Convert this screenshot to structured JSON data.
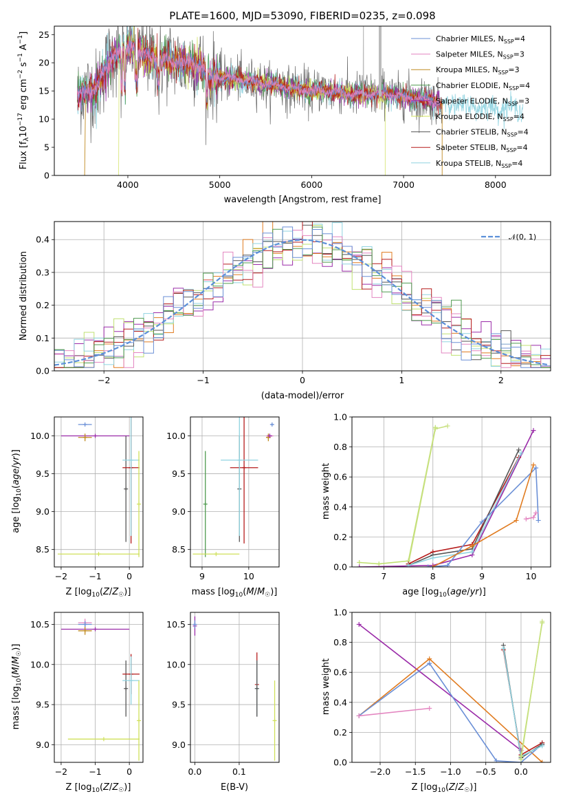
{
  "title": "PLATE=1600, MJD=53090, FIBERID=0235, z=0.098",
  "colors": {
    "Chabrier MILES": "#6a8fd6",
    "Salpeter MILES": "#e385c0",
    "Kroupa MILES": "#c08a20",
    "Chabrier ELODIE": "#4f9a4f",
    "Salpeter ELODIE": "#9a2aa8",
    "Kroupa ELODIE": "#cfe05a",
    "Chabrier STELIB": "#555555",
    "Salpeter STELIB": "#b51a1a",
    "Kroupa STELIB": "#8fd3e0",
    "orange": "#e07b1f",
    "lime": "#bfe070",
    "gauss": "#5b8fd8"
  },
  "chart_data": [
    {
      "id": "spectrum",
      "type": "line",
      "xlabel": "wavelength [Angstrom, rest frame]",
      "ylabel": "Flux [f_λ 10^-17 erg cm^-2 s^-1 A^-1]",
      "xlim": [
        3200,
        8600
      ],
      "ylim": [
        0,
        26.5
      ],
      "xticks": [
        4000,
        5000,
        6000,
        7000,
        8000
      ],
      "yticks": [
        0,
        5,
        10,
        15,
        20,
        25
      ],
      "legend_position": "top-right",
      "legend": [
        {
          "label": "Chabrier MILES, N_SSP=4",
          "base": "Chabrier MILES, N",
          "sub": "SSP",
          "tail": "=4"
        },
        {
          "label": "Salpeter MILES, N_SSP=3",
          "base": "Salpeter MILES, N",
          "sub": "SSP",
          "tail": "=3"
        },
        {
          "label": "Kroupa MILES, N_SSP=3",
          "base": "Kroupa MILES, N",
          "sub": "SSP",
          "tail": "=3"
        },
        {
          "label": "Chabrier ELODIE, N_SSP=4",
          "base": "Chabrier ELODIE, N",
          "sub": "SSP",
          "tail": "=4"
        },
        {
          "label": "Salpeter ELODIE, N_SSP=3",
          "base": "Salpeter ELODIE, N",
          "sub": "SSP",
          "tail": "=3"
        },
        {
          "label": "Kroupa ELODIE, N_SSP=4",
          "base": "Kroupa ELODIE, N",
          "sub": "SSP",
          "tail": "=4"
        },
        {
          "label": "Chabrier STELIB, N_SSP=4",
          "base": "Chabrier STELIB, N",
          "sub": "SSP",
          "tail": "=4"
        },
        {
          "label": "Salpeter STELIB, N_SSP=4",
          "base": "Salpeter STELIB, N",
          "sub": "SSP",
          "tail": "=4"
        },
        {
          "label": "Kroupa STELIB, N_SSP=4",
          "base": "Kroupa STELIB, N",
          "sub": "SSP",
          "tail": "=4"
        }
      ],
      "data_trend": {
        "wavelength": [
          3450,
          3550,
          3650,
          3750,
          3850,
          3950,
          4050,
          4200,
          4400,
          4600,
          4800,
          4900,
          5000,
          5200,
          5400,
          5600,
          5800,
          6000,
          6200,
          6400,
          6600,
          6800,
          7000,
          7200,
          7400,
          7600,
          7800,
          8000,
          8200,
          8400
        ],
        "flux": [
          14.5,
          14.8,
          15.5,
          18.5,
          21.5,
          22.0,
          23.0,
          21.0,
          20.5,
          20.0,
          19.5,
          17.0,
          17.5,
          17.0,
          16.5,
          16.0,
          15.5,
          15.0,
          15.0,
          14.5,
          14.5,
          14.5,
          14.0,
          13.5,
          13.0,
          12.5,
          12.2,
          12.0,
          12.0,
          12.0
        ]
      }
    },
    {
      "id": "residual-histogram",
      "type": "line",
      "xlabel": "(data-model)/error",
      "ylabel": "Normed distribution",
      "xlim": [
        -2.5,
        2.5
      ],
      "ylim": [
        0,
        0.455
      ],
      "xticks": [
        -2,
        -1,
        0,
        1,
        2
      ],
      "yticks": [
        0.0,
        0.1,
        0.2,
        0.3,
        0.4
      ],
      "legend_position": "top-right",
      "legend": [
        {
          "label": "𝒩(0, 1)"
        }
      ],
      "series": [
        {
          "name": "𝒩(0, 1)",
          "mean": 0,
          "sigma": 1
        }
      ]
    },
    {
      "id": "age-vs-Z",
      "type": "scatter",
      "xlabel": "Z [log10(Z/Z☉)]",
      "ylabel": "age [log10(age/yr)]",
      "xlim": [
        -2.2,
        0.4
      ],
      "ylim": [
        8.27,
        10.25
      ],
      "xticks": [
        -2,
        -1,
        0
      ],
      "yticks": [
        8.5,
        9.0,
        9.5,
        10.0
      ],
      "points": [
        {
          "series": "Chabrier MILES",
          "x": -1.3,
          "y": 10.15,
          "xerr": 0.2,
          "yerr": 0.0
        },
        {
          "series": "Salpeter ELODIE",
          "x": -1.0,
          "y": 10.0,
          "xerr": 1.0,
          "yerr": 0.0
        },
        {
          "series": "Kroupa MILES",
          "x": -1.3,
          "y": 9.98,
          "xerr": 0.2,
          "yerr": 0.05
        },
        {
          "series": "Chabrier STELIB",
          "x": -0.1,
          "y": 9.3,
          "xerr": 0.02,
          "yerr": 0.7
        },
        {
          "series": "Salpeter STELIB",
          "x": 0.05,
          "y": 9.58,
          "xerr": 0.25,
          "yerr": 1.0
        },
        {
          "series": "Kroupa STELIB",
          "x": 0.05,
          "y": 9.68,
          "xerr": 0.25,
          "yerr": 1.0
        },
        {
          "series": "Kroupa ELODIE",
          "x": -0.9,
          "y": 8.44,
          "xerr": 1.2,
          "yerr": 0.0
        },
        {
          "series": "Kroupa ELODIE",
          "x": 0.28,
          "y": 9.1,
          "xerr": 0.0,
          "yerr": 0.7
        }
      ]
    },
    {
      "id": "age-vs-mass",
      "type": "scatter",
      "xlabel": "mass [log10(M/M☉)]",
      "ylabel": "",
      "xlim": [
        8.75,
        10.65
      ],
      "ylim": [
        8.27,
        10.25
      ],
      "xticks": [
        9,
        10
      ],
      "yticks": [
        8.5,
        9.0,
        9.5,
        10.0
      ],
      "points": [
        {
          "series": "Chabrier MILES",
          "x": 10.5,
          "y": 10.15,
          "xerr": 0.03,
          "yerr": 0.0
        },
        {
          "series": "Salpeter MILES",
          "x": 10.45,
          "y": 10.0,
          "xerr": 0.08,
          "yerr": 0.03
        },
        {
          "series": "Kroupa MILES",
          "x": 10.42,
          "y": 9.98,
          "xerr": 0.05,
          "yerr": 0.05
        },
        {
          "series": "Salpeter ELODIE",
          "x": 10.45,
          "y": 10.0,
          "xerr": 0.05,
          "yerr": 0.0
        },
        {
          "series": "Chabrier STELIB",
          "x": 9.8,
          "y": 9.3,
          "xerr": 0.0,
          "yerr": 0.7
        },
        {
          "series": "Salpeter STELIB",
          "x": 9.9,
          "y": 9.58,
          "xerr": 0.3,
          "yerr": 1.0
        },
        {
          "series": "Kroupa STELIB",
          "x": 9.8,
          "y": 9.68,
          "xerr": 0.4,
          "yerr": 1.0
        },
        {
          "series": "Chabrier ELODIE",
          "x": 9.07,
          "y": 9.1,
          "xerr": 0.0,
          "yerr": 0.7
        },
        {
          "series": "Kroupa ELODIE",
          "x": 9.3,
          "y": 8.44,
          "xerr": 0.5,
          "yerr": 0.0
        }
      ]
    },
    {
      "id": "mass-weight-vs-age",
      "type": "line",
      "xlabel": "age [log10(age/yr)]",
      "ylabel": "mass weight",
      "xlim": [
        6.35,
        10.4
      ],
      "ylim": [
        0,
        1.0
      ],
      "xticks": [
        7,
        8,
        9,
        10
      ],
      "yticks": [
        0.0,
        0.2,
        0.4,
        0.6,
        0.8,
        1.0
      ],
      "series": [
        {
          "name": "Kroupa ELODIE",
          "x": [
            6.5,
            6.9,
            7.5,
            8.05
          ],
          "y": [
            0.03,
            0.02,
            0.04,
            0.93
          ]
        },
        {
          "name": "Chabrier ELODIE",
          "x": [
            7.5,
            8.05,
            8.3
          ],
          "y": [
            0.02,
            0.92,
            0.94
          ]
        },
        {
          "name": "Salpeter ELODIE",
          "x": [
            6.5,
            8.0,
            8.8,
            10.05
          ],
          "y": [
            0.0,
            0.01,
            0.08,
            0.91
          ]
        },
        {
          "name": "Salpeter STELIB",
          "x": [
            7.5,
            8.0,
            8.8,
            9.75
          ],
          "y": [
            0.02,
            0.1,
            0.15,
            0.73
          ]
        },
        {
          "name": "Chabrier STELIB",
          "x": [
            7.5,
            8.0,
            8.8,
            9.75
          ],
          "y": [
            0.01,
            0.08,
            0.12,
            0.78
          ]
        },
        {
          "name": "Kroupa STELIB",
          "x": [
            7.5,
            8.0,
            8.8,
            9.8
          ],
          "y": [
            0.01,
            0.06,
            0.1,
            0.76
          ]
        },
        {
          "name": "Chabrier MILES",
          "x": [
            7.9,
            8.3,
            9.0,
            10.1,
            10.15
          ],
          "y": [
            0.0,
            0.01,
            0.3,
            0.66,
            0.31
          ]
        },
        {
          "name": "Kroupa MILES",
          "x": [
            8.0,
            8.8,
            9.7,
            10.05
          ],
          "y": [
            0.0,
            0.14,
            0.31,
            0.68
          ]
        },
        {
          "name": "Salpeter MILES",
          "x": [
            9.9,
            10.05,
            10.1
          ],
          "y": [
            0.32,
            0.33,
            0.36
          ]
        }
      ]
    },
    {
      "id": "mass-vs-Z",
      "type": "scatter",
      "xlabel": "Z [log10(Z/Z☉)]",
      "ylabel": "mass [log10(M/M☉)]",
      "xlim": [
        -2.2,
        0.4
      ],
      "ylim": [
        8.78,
        10.65
      ],
      "xticks": [
        -2,
        -1,
        0
      ],
      "yticks": [
        9.0,
        9.5,
        10.0,
        10.5
      ],
      "points": [
        {
          "series": "Salpeter MILES",
          "x": -1.3,
          "y": 10.52,
          "xerr": 0.2,
          "yerr": 0.05
        },
        {
          "series": "Chabrier MILES",
          "x": -1.3,
          "y": 10.5,
          "xerr": 0.2,
          "yerr": 0.04
        },
        {
          "series": "Salpeter ELODIE",
          "x": -1.0,
          "y": 10.44,
          "xerr": 1.0,
          "yerr": 0.0
        },
        {
          "series": "Kroupa MILES",
          "x": -1.3,
          "y": 10.42,
          "xerr": 0.2,
          "yerr": 0.05
        },
        {
          "series": "Chabrier STELIB",
          "x": -0.1,
          "y": 9.7,
          "xerr": 0.02,
          "yerr": 0.35
        },
        {
          "series": "Salpeter STELIB",
          "x": 0.05,
          "y": 9.88,
          "xerr": 0.25,
          "yerr": 0.25
        },
        {
          "series": "Kroupa STELIB",
          "x": 0.05,
          "y": 9.8,
          "xerr": 0.25,
          "yerr": 0.3
        },
        {
          "series": "Kroupa ELODIE",
          "x": -0.75,
          "y": 9.07,
          "xerr": 1.05,
          "yerr": 0.0
        },
        {
          "series": "Kroupa ELODIE",
          "x": 0.28,
          "y": 9.3,
          "xerr": 0.0,
          "yerr": 0.5
        }
      ]
    },
    {
      "id": "mass-vs-ebv",
      "type": "scatter",
      "xlabel": "E(B-V)",
      "ylabel": "",
      "xlim": [
        -0.01,
        0.19
      ],
      "ylim": [
        8.78,
        10.65
      ],
      "xticks": [
        0.0,
        0.1
      ],
      "yticks": [
        9.0,
        9.5,
        10.0,
        10.5
      ],
      "points": [
        {
          "series": "Salpeter ELODIE",
          "x": 0.0,
          "y": 10.48,
          "xerr": 0.0,
          "yerr": 0.12
        },
        {
          "series": "Chabrier MILES",
          "x": 0.0,
          "y": 10.5,
          "xerr": 0.0,
          "yerr": 0.05
        },
        {
          "series": "Salpeter STELIB",
          "x": 0.14,
          "y": 9.75,
          "xerr": 0.0,
          "yerr": 0.4
        },
        {
          "series": "Kroupa STELIB",
          "x": 0.14,
          "y": 9.7,
          "xerr": 0.0,
          "yerr": 0.35
        },
        {
          "series": "Chabrier STELIB",
          "x": 0.14,
          "y": 9.7,
          "xerr": 0.0,
          "yerr": 0.35
        },
        {
          "series": "Kroupa ELODIE",
          "x": 0.18,
          "y": 9.3,
          "xerr": 0.0,
          "yerr": 0.5
        }
      ]
    },
    {
      "id": "mass-weight-vs-Z",
      "type": "line",
      "xlabel": "Z [log10(Z/Z☉)]",
      "ylabel": "mass weight",
      "xlim": [
        -2.4,
        0.42
      ],
      "ylim": [
        0,
        1.0
      ],
      "xticks": [
        -2.0,
        -1.5,
        -1.0,
        -0.5,
        0.0
      ],
      "yticks": [
        0.0,
        0.2,
        0.4,
        0.6,
        0.8,
        1.0
      ],
      "series": [
        {
          "name": "Salpeter ELODIE",
          "x": [
            -2.3,
            0.0
          ],
          "y": [
            0.92,
            0.08
          ]
        },
        {
          "name": "Kroupa MILES",
          "x": [
            -2.3,
            -1.3,
            0.3
          ],
          "y": [
            0.31,
            0.69,
            0.0
          ]
        },
        {
          "name": "Chabrier MILES",
          "x": [
            -2.3,
            -1.3,
            -0.35,
            0.0,
            0.3
          ],
          "y": [
            0.31,
            0.66,
            0.01,
            0.0,
            0.12
          ]
        },
        {
          "name": "Salpeter MILES",
          "x": [
            -2.3,
            -1.3
          ],
          "y": [
            0.31,
            0.36
          ]
        },
        {
          "name": "Salpeter STELIB",
          "x": [
            -0.25,
            0.0,
            0.3
          ],
          "y": [
            0.75,
            0.05,
            0.13
          ]
        },
        {
          "name": "Chabrier STELIB",
          "x": [
            -0.25,
            0.0,
            0.3
          ],
          "y": [
            0.78,
            0.03,
            0.12
          ]
        },
        {
          "name": "Kroupa STELIB",
          "x": [
            -0.25,
            0.0,
            0.3
          ],
          "y": [
            0.76,
            0.04,
            0.11
          ]
        },
        {
          "name": "Kroupa ELODIE",
          "x": [
            0.0,
            0.3
          ],
          "y": [
            0.04,
            0.93
          ]
        },
        {
          "name": "Chabrier ELODIE",
          "x": [
            0.0,
            0.3
          ],
          "y": [
            0.02,
            0.94
          ]
        }
      ]
    }
  ]
}
